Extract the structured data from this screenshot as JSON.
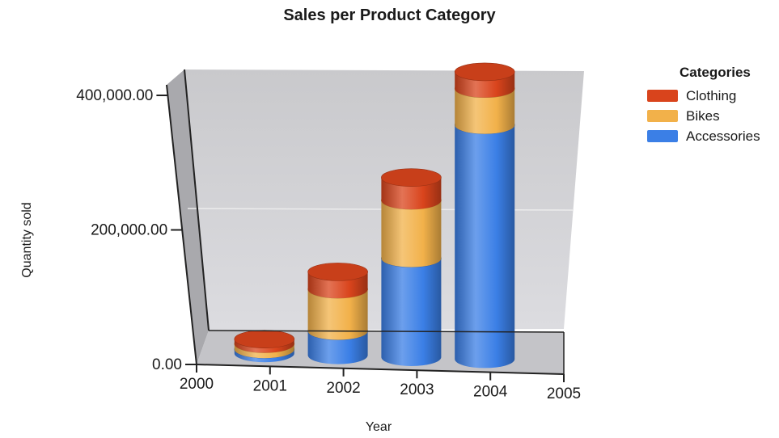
{
  "chart_data": {
    "type": "bar",
    "title": "Sales per Product Category",
    "xlabel": "Year",
    "ylabel": "Quantity sold",
    "x_ticks": [
      "2000",
      "2001",
      "2002",
      "2003",
      "2004",
      "2005"
    ],
    "categories": [
      "2001",
      "2002",
      "2003",
      "2004"
    ],
    "y_ticks": [
      "0.00",
      "200,000.00",
      "400,000.00"
    ],
    "ylim": [
      0,
      400000
    ],
    "stacked": true,
    "style": "3d-cylinder",
    "series": [
      {
        "name": "Accessories",
        "color": "#3b7fe6",
        "values": [
          6000,
          36000,
          147000,
          348000
        ]
      },
      {
        "name": "Bikes",
        "color": "#f2b14a",
        "values": [
          8000,
          62000,
          86000,
          54000
        ]
      },
      {
        "name": "Clothing",
        "color": "#d9441c",
        "values": [
          7000,
          26000,
          34000,
          25000
        ]
      }
    ],
    "legend": {
      "title": "Categories",
      "placement": "right",
      "order": [
        "Clothing",
        "Bikes",
        "Accessories"
      ]
    }
  }
}
